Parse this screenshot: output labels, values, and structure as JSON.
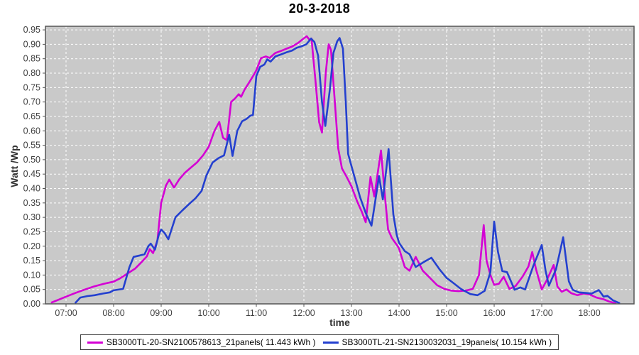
{
  "chart_data": {
    "type": "line",
    "title": "20-3-2018",
    "xlabel": "time",
    "ylabel": "Watt /Wp",
    "x_domain_hours": [
      6.567,
      18.94
    ],
    "ylim": [
      0,
      0.9625
    ],
    "y_tick_format": "0.00",
    "grid": {
      "on": true,
      "color": "#ffffff",
      "style": "dashed"
    },
    "plot_bg": "#c9c9c9",
    "plot_border_color": "#555555",
    "tick_label_color": "#3f3f3f",
    "legend_position": "bottom-center",
    "x_ticks": [
      {
        "v": 7,
        "label": "07:00"
      },
      {
        "v": 8,
        "label": "08:00"
      },
      {
        "v": 9,
        "label": "09:00"
      },
      {
        "v": 10,
        "label": "10:00"
      },
      {
        "v": 11,
        "label": "11:00"
      },
      {
        "v": 12,
        "label": "12:00"
      },
      {
        "v": 13,
        "label": "13:00"
      },
      {
        "v": 14,
        "label": "14:00"
      },
      {
        "v": 15,
        "label": "15:00"
      },
      {
        "v": 16,
        "label": "16:00"
      },
      {
        "v": 17,
        "label": "17:00"
      },
      {
        "v": 18,
        "label": "18:00"
      }
    ],
    "y_ticks": [
      0,
      0.05,
      0.1,
      0.15,
      0.2,
      0.25,
      0.3,
      0.35,
      0.4,
      0.45,
      0.5,
      0.55,
      0.6,
      0.65,
      0.7,
      0.75,
      0.8,
      0.85,
      0.9,
      0.95
    ],
    "series": [
      {
        "name": "SB3000TL-20-SN2100578613_21panels( 11.443 kWh )",
        "color": "#d400d4",
        "points": [
          [
            6.7,
            0.005
          ],
          [
            6.85,
            0.015
          ],
          [
            7.0,
            0.025
          ],
          [
            7.2,
            0.038
          ],
          [
            7.4,
            0.05
          ],
          [
            7.6,
            0.061
          ],
          [
            7.8,
            0.07
          ],
          [
            8.0,
            0.077
          ],
          [
            8.13,
            0.088
          ],
          [
            8.3,
            0.106
          ],
          [
            8.45,
            0.122
          ],
          [
            8.6,
            0.147
          ],
          [
            8.7,
            0.165
          ],
          [
            8.76,
            0.19
          ],
          [
            8.83,
            0.176
          ],
          [
            8.92,
            0.22
          ],
          [
            9.0,
            0.35
          ],
          [
            9.1,
            0.41
          ],
          [
            9.17,
            0.431
          ],
          [
            9.27,
            0.403
          ],
          [
            9.38,
            0.432
          ],
          [
            9.5,
            0.455
          ],
          [
            9.62,
            0.472
          ],
          [
            9.75,
            0.49
          ],
          [
            9.88,
            0.515
          ],
          [
            10.0,
            0.545
          ],
          [
            10.12,
            0.6
          ],
          [
            10.22,
            0.631
          ],
          [
            10.3,
            0.576
          ],
          [
            10.38,
            0.568
          ],
          [
            10.47,
            0.7
          ],
          [
            10.55,
            0.712
          ],
          [
            10.63,
            0.727
          ],
          [
            10.68,
            0.718
          ],
          [
            10.75,
            0.742
          ],
          [
            10.85,
            0.768
          ],
          [
            10.95,
            0.795
          ],
          [
            11.0,
            0.81
          ],
          [
            11.1,
            0.852
          ],
          [
            11.2,
            0.858
          ],
          [
            11.28,
            0.853
          ],
          [
            11.4,
            0.87
          ],
          [
            11.52,
            0.877
          ],
          [
            11.62,
            0.884
          ],
          [
            11.75,
            0.892
          ],
          [
            11.88,
            0.905
          ],
          [
            11.97,
            0.917
          ],
          [
            12.06,
            0.928
          ],
          [
            12.12,
            0.915
          ],
          [
            12.16,
            0.92
          ],
          [
            12.24,
            0.78
          ],
          [
            12.32,
            0.63
          ],
          [
            12.38,
            0.594
          ],
          [
            12.46,
            0.8
          ],
          [
            12.52,
            0.9
          ],
          [
            12.57,
            0.88
          ],
          [
            12.65,
            0.7
          ],
          [
            12.72,
            0.54
          ],
          [
            12.8,
            0.47
          ],
          [
            12.9,
            0.44
          ],
          [
            13.0,
            0.408
          ],
          [
            13.12,
            0.355
          ],
          [
            13.22,
            0.318
          ],
          [
            13.3,
            0.283
          ],
          [
            13.4,
            0.44
          ],
          [
            13.48,
            0.372
          ],
          [
            13.62,
            0.532
          ],
          [
            13.7,
            0.38
          ],
          [
            13.77,
            0.258
          ],
          [
            13.85,
            0.228
          ],
          [
            13.95,
            0.205
          ],
          [
            14.0,
            0.192
          ],
          [
            14.12,
            0.128
          ],
          [
            14.22,
            0.115
          ],
          [
            14.35,
            0.163
          ],
          [
            14.5,
            0.115
          ],
          [
            14.65,
            0.09
          ],
          [
            14.8,
            0.065
          ],
          [
            14.95,
            0.052
          ],
          [
            15.1,
            0.046
          ],
          [
            15.25,
            0.044
          ],
          [
            15.4,
            0.046
          ],
          [
            15.55,
            0.052
          ],
          [
            15.68,
            0.1
          ],
          [
            15.78,
            0.273
          ],
          [
            15.84,
            0.15
          ],
          [
            15.92,
            0.1
          ],
          [
            16.0,
            0.066
          ],
          [
            16.1,
            0.07
          ],
          [
            16.2,
            0.094
          ],
          [
            16.32,
            0.052
          ],
          [
            16.45,
            0.062
          ],
          [
            16.6,
            0.095
          ],
          [
            16.72,
            0.13
          ],
          [
            16.8,
            0.18
          ],
          [
            16.88,
            0.12
          ],
          [
            17.0,
            0.05
          ],
          [
            17.1,
            0.08
          ],
          [
            17.25,
            0.135
          ],
          [
            17.33,
            0.06
          ],
          [
            17.42,
            0.042
          ],
          [
            17.52,
            0.05
          ],
          [
            17.62,
            0.037
          ],
          [
            17.75,
            0.03
          ],
          [
            17.88,
            0.036
          ],
          [
            18.0,
            0.033
          ],
          [
            18.15,
            0.022
          ],
          [
            18.3,
            0.016
          ],
          [
            18.42,
            0.008
          ],
          [
            18.55,
            0.002
          ]
        ]
      },
      {
        "name": "SB3000TL-21-SN2130032031_19panels( 10.154 kWh )",
        "color": "#2440cf",
        "points": [
          [
            7.2,
            0.004
          ],
          [
            7.3,
            0.022
          ],
          [
            7.45,
            0.027
          ],
          [
            7.6,
            0.03
          ],
          [
            7.78,
            0.036
          ],
          [
            7.92,
            0.04
          ],
          [
            8.0,
            0.047
          ],
          [
            8.2,
            0.052
          ],
          [
            8.33,
            0.126
          ],
          [
            8.42,
            0.163
          ],
          [
            8.55,
            0.168
          ],
          [
            8.65,
            0.172
          ],
          [
            8.73,
            0.2
          ],
          [
            8.78,
            0.209
          ],
          [
            8.87,
            0.188
          ],
          [
            8.95,
            0.24
          ],
          [
            9.0,
            0.258
          ],
          [
            9.07,
            0.246
          ],
          [
            9.15,
            0.224
          ],
          [
            9.3,
            0.3
          ],
          [
            9.45,
            0.325
          ],
          [
            9.6,
            0.348
          ],
          [
            9.72,
            0.366
          ],
          [
            9.85,
            0.392
          ],
          [
            9.95,
            0.445
          ],
          [
            10.08,
            0.49
          ],
          [
            10.2,
            0.505
          ],
          [
            10.32,
            0.515
          ],
          [
            10.43,
            0.586
          ],
          [
            10.5,
            0.513
          ],
          [
            10.6,
            0.6
          ],
          [
            10.7,
            0.633
          ],
          [
            10.8,
            0.642
          ],
          [
            10.87,
            0.652
          ],
          [
            10.93,
            0.655
          ],
          [
            11.0,
            0.79
          ],
          [
            11.08,
            0.822
          ],
          [
            11.17,
            0.83
          ],
          [
            11.23,
            0.848
          ],
          [
            11.3,
            0.84
          ],
          [
            11.4,
            0.858
          ],
          [
            11.52,
            0.865
          ],
          [
            11.63,
            0.872
          ],
          [
            11.75,
            0.878
          ],
          [
            11.85,
            0.888
          ],
          [
            11.95,
            0.893
          ],
          [
            12.05,
            0.9
          ],
          [
            12.15,
            0.92
          ],
          [
            12.22,
            0.908
          ],
          [
            12.3,
            0.86
          ],
          [
            12.38,
            0.7
          ],
          [
            12.45,
            0.617
          ],
          [
            12.55,
            0.75
          ],
          [
            12.62,
            0.87
          ],
          [
            12.7,
            0.91
          ],
          [
            12.75,
            0.922
          ],
          [
            12.82,
            0.885
          ],
          [
            12.88,
            0.7
          ],
          [
            12.93,
            0.52
          ],
          [
            13.0,
            0.478
          ],
          [
            13.08,
            0.43
          ],
          [
            13.18,
            0.37
          ],
          [
            13.3,
            0.315
          ],
          [
            13.42,
            0.271
          ],
          [
            13.58,
            0.443
          ],
          [
            13.66,
            0.362
          ],
          [
            13.78,
            0.537
          ],
          [
            13.88,
            0.31
          ],
          [
            13.95,
            0.24
          ],
          [
            14.0,
            0.212
          ],
          [
            14.12,
            0.183
          ],
          [
            14.22,
            0.172
          ],
          [
            14.35,
            0.128
          ],
          [
            14.55,
            0.148
          ],
          [
            14.68,
            0.16
          ],
          [
            14.85,
            0.12
          ],
          [
            15.0,
            0.09
          ],
          [
            15.12,
            0.075
          ],
          [
            15.3,
            0.052
          ],
          [
            15.5,
            0.034
          ],
          [
            15.65,
            0.03
          ],
          [
            15.8,
            0.045
          ],
          [
            15.92,
            0.11
          ],
          [
            16.0,
            0.285
          ],
          [
            16.08,
            0.18
          ],
          [
            16.17,
            0.114
          ],
          [
            16.27,
            0.11
          ],
          [
            16.43,
            0.049
          ],
          [
            16.55,
            0.057
          ],
          [
            16.65,
            0.05
          ],
          [
            16.82,
            0.131
          ],
          [
            17.0,
            0.204
          ],
          [
            17.08,
            0.115
          ],
          [
            17.15,
            0.063
          ],
          [
            17.3,
            0.12
          ],
          [
            17.45,
            0.231
          ],
          [
            17.57,
            0.078
          ],
          [
            17.65,
            0.049
          ],
          [
            17.78,
            0.04
          ],
          [
            17.92,
            0.038
          ],
          [
            18.05,
            0.036
          ],
          [
            18.2,
            0.048
          ],
          [
            18.3,
            0.025
          ],
          [
            18.38,
            0.028
          ],
          [
            18.5,
            0.012
          ],
          [
            18.63,
            0.003
          ]
        ]
      }
    ]
  }
}
